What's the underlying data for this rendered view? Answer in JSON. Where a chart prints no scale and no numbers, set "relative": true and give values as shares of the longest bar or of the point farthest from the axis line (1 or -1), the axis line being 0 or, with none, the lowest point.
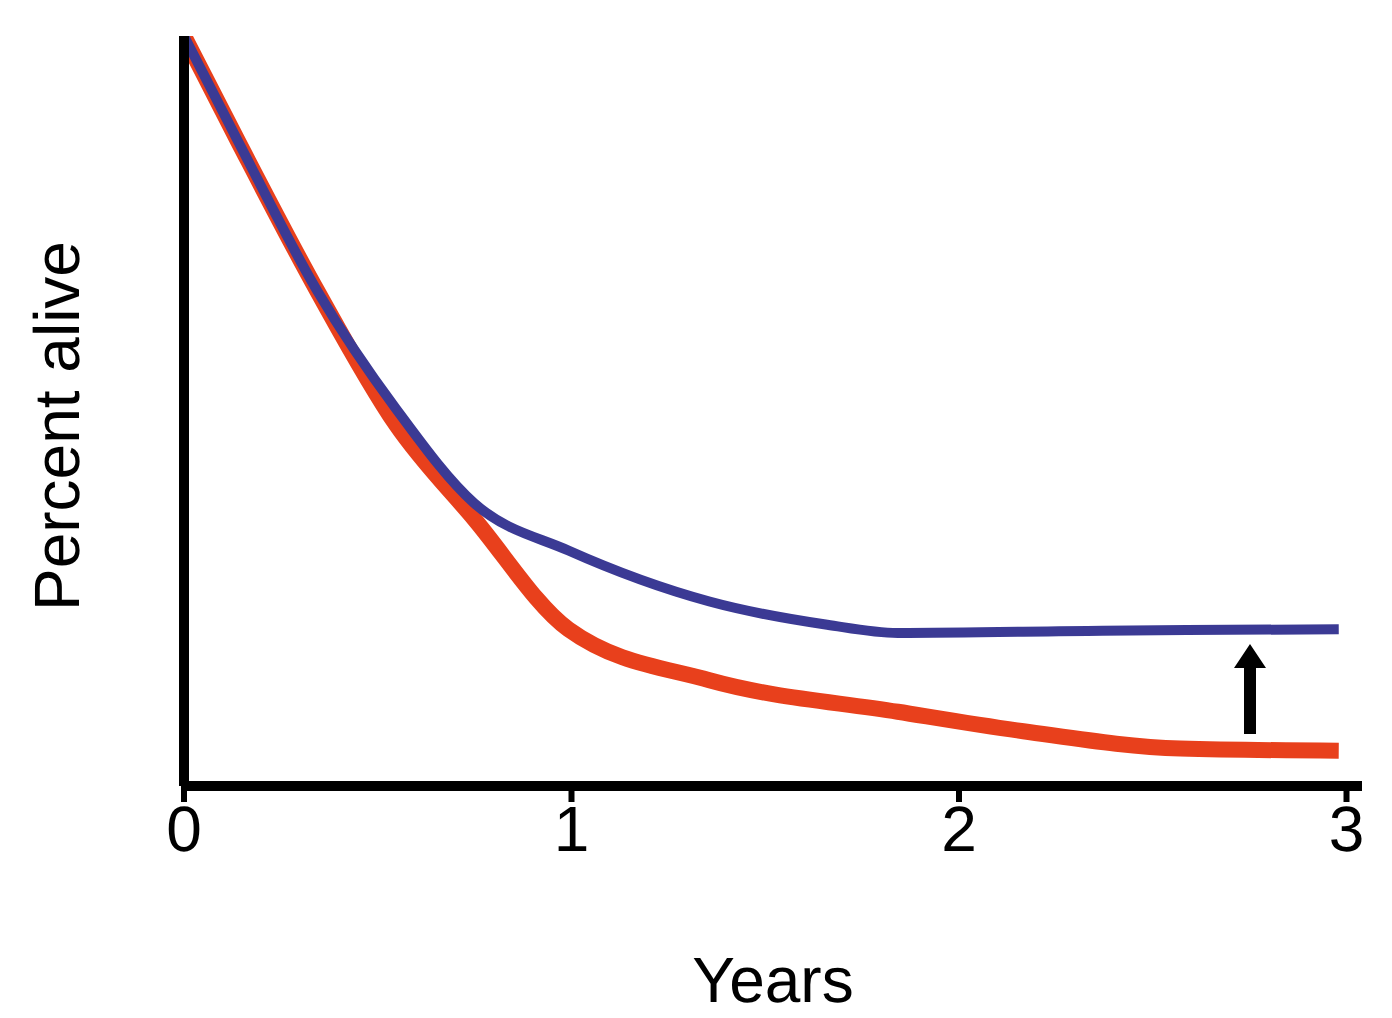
{
  "chart_data": {
    "type": "line",
    "relative": true,
    "xlabel": "Years",
    "ylabel": "Percent alive",
    "xlim": [
      0,
      3.04
    ],
    "xticks": [
      0,
      1,
      2,
      3
    ],
    "grid": false,
    "legend": false,
    "marker": "none",
    "line_style": "solid",
    "series": [
      {
        "color": "#e8401c",
        "x": [
          0,
          0.14,
          0.344,
          0.547,
          0.749,
          0.992,
          1.356,
          1.842,
          2.166,
          2.571,
          2.98
        ],
        "values": [
          1,
          0.859,
          0.66,
          0.482,
          0.356,
          0.209,
          0.141,
          0.099,
          0.073,
          0.05,
          0.047
        ]
      },
      {
        "color": "#3b3a94",
        "x": [
          0,
          0.14,
          0.344,
          0.547,
          0.749,
          0.992,
          1.356,
          1.66,
          1.842,
          2.37,
          2.98
        ],
        "values": [
          1,
          0.859,
          0.66,
          0.503,
          0.377,
          0.314,
          0.246,
          0.215,
          0.204,
          0.207,
          0.209
        ]
      }
    ]
  }
}
